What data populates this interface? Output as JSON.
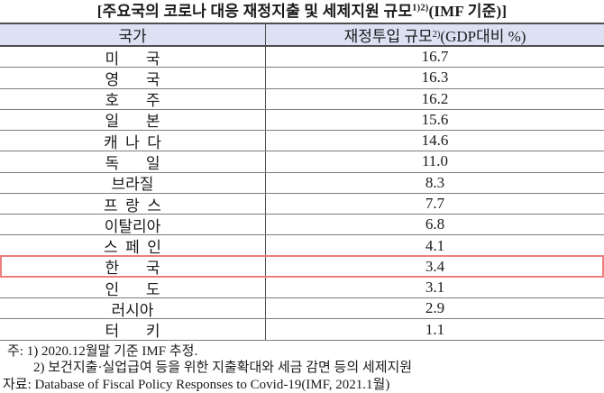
{
  "title": {
    "main": "[주요국의 코로나 대응 재정지출 및 세제지원 규모",
    "sup": "1)2)",
    "tail": "(IMF 기준)]"
  },
  "table": {
    "header": {
      "col1": "국가",
      "col2_main": "재정투입 규모",
      "col2_sup": "2)",
      "col2_tail": "(GDP대비 %)"
    },
    "rows": [
      {
        "country": "미       국",
        "value": "16.7",
        "highlighted": false
      },
      {
        "country": "영       국",
        "value": "16.3",
        "highlighted": false
      },
      {
        "country": "호       주",
        "value": "16.2",
        "highlighted": false
      },
      {
        "country": "일       본",
        "value": "15.6",
        "highlighted": false
      },
      {
        "country": "캐  나  다",
        "value": "14.6",
        "highlighted": false
      },
      {
        "country": "독       일",
        "value": "11.0",
        "highlighted": false
      },
      {
        "country": "브라질",
        "value": "8.3",
        "highlighted": false
      },
      {
        "country": "프  랑  스",
        "value": "7.7",
        "highlighted": false
      },
      {
        "country": "이탈리아",
        "value": "6.8",
        "highlighted": false
      },
      {
        "country": "스  페  인",
        "value": "4.1",
        "highlighted": false
      },
      {
        "country": "한       국",
        "value": "3.4",
        "highlighted": true
      },
      {
        "country": "인       도",
        "value": "3.1",
        "highlighted": false
      },
      {
        "country": "러시아",
        "value": "2.9",
        "highlighted": false
      },
      {
        "country": "터       키",
        "value": "1.1",
        "highlighted": false
      }
    ]
  },
  "notes": {
    "note1": "주: 1) 2020.12월말 기준 IMF 추정.",
    "note2": "2) 보건지출·실업급여 등을 위한 지출확대와 세금 감면 등의 세제지원",
    "source": "자료: Database of Fiscal Policy Responses to Covid-19(IMF, 2021.1월)"
  },
  "colors": {
    "header_bg": "#dce2f4",
    "highlight_border": "#ee7e7e",
    "grid_line": "#7e7e7e",
    "strong_line": "#4f4f4f"
  },
  "chart_data": {
    "type": "table",
    "title": "[주요국의 코로나 대응 재정지출 및 세제지원 규모1)2)(IMF 기준)]",
    "columns": [
      "국가",
      "재정투입 규모2)(GDP대비 %)"
    ],
    "categories": [
      "미국",
      "영국",
      "호주",
      "일본",
      "캐나다",
      "독일",
      "브라질",
      "프랑스",
      "이탈리아",
      "스페인",
      "한국",
      "인도",
      "러시아",
      "터키"
    ],
    "values": [
      16.7,
      16.3,
      16.2,
      15.6,
      14.6,
      11.0,
      8.3,
      7.7,
      6.8,
      4.1,
      3.4,
      3.1,
      2.9,
      1.1
    ],
    "highlighted_category": "한국"
  }
}
